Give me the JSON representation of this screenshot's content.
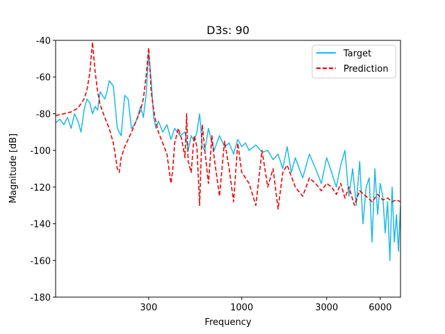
{
  "chart_data": {
    "type": "line",
    "title": "D3s: 90",
    "xlabel": "Frequency",
    "ylabel": "Magnitude [dB]",
    "xscale": "log",
    "xlim": [
      90,
      7800
    ],
    "ylim": [
      -180,
      -40
    ],
    "xticks": [
      300,
      1000,
      3000,
      6000
    ],
    "xtick_labels": [
      "300",
      "1000",
      "3000",
      "6000"
    ],
    "yticks": [
      -180,
      -160,
      -140,
      -120,
      -100,
      -80,
      -60,
      -40
    ],
    "ytick_labels": [
      "-180",
      "-160",
      "-140",
      "-120",
      "-100",
      "-80",
      "-60",
      "-40"
    ],
    "legend_position": "top-right",
    "legend": [
      "Target",
      "Prediction"
    ],
    "colors": {
      "Target": "#1ab8ec",
      "Prediction": "#ee0000"
    },
    "series": [
      {
        "name": "Target",
        "style": "solid",
        "x": [
          90,
          95,
          100,
          105,
          110,
          115,
          120,
          125,
          130,
          135,
          140,
          145,
          150,
          155,
          160,
          165,
          170,
          175,
          180,
          190,
          200,
          210,
          220,
          230,
          240,
          250,
          260,
          270,
          280,
          290,
          300,
          310,
          320,
          330,
          340,
          360,
          380,
          400,
          420,
          450,
          480,
          500,
          520,
          540,
          560,
          580,
          600,
          620,
          650,
          680,
          700,
          750,
          800,
          850,
          900,
          950,
          1000,
          1050,
          1100,
          1200,
          1300,
          1400,
          1500,
          1600,
          1700,
          1800,
          1900,
          2000,
          2200,
          2400,
          2600,
          2800,
          3000,
          3200,
          3400,
          3600,
          3800,
          4000,
          4200,
          4400,
          4600,
          4800,
          5000,
          5200,
          5400,
          5600,
          5800,
          6000,
          6200,
          6400,
          6600,
          6800,
          7000,
          7200,
          7400,
          7600,
          7800
        ],
        "values": [
          -85,
          -83,
          -86,
          -82,
          -88,
          -80,
          -84,
          -90,
          -78,
          -72,
          -74,
          -80,
          -76,
          -78,
          -68,
          -70,
          -72,
          -68,
          -62,
          -65,
          -88,
          -92,
          -70,
          -72,
          -88,
          -86,
          -82,
          -76,
          -82,
          -70,
          -47,
          -62,
          -82,
          -88,
          -84,
          -90,
          -86,
          -94,
          -88,
          -92,
          -90,
          -100,
          -92,
          -95,
          -90,
          -80,
          -98,
          -100,
          -88,
          -96,
          -100,
          -92,
          -98,
          -96,
          -102,
          -94,
          -98,
          -96,
          -100,
          -97,
          -101,
          -100,
          -105,
          -102,
          -110,
          -98,
          -112,
          -104,
          -115,
          -102,
          -110,
          -118,
          -104,
          -112,
          -120,
          -108,
          -100,
          -125,
          -110,
          -130,
          -106,
          -140,
          -120,
          -115,
          -150,
          -110,
          -135,
          -118,
          -125,
          -145,
          -128,
          -160,
          -120,
          -150,
          -135,
          -155,
          -130
        ]
      },
      {
        "name": "Prediction",
        "style": "dashed",
        "x": [
          90,
          100,
          110,
          120,
          130,
          135,
          140,
          145,
          150,
          155,
          160,
          170,
          180,
          190,
          200,
          205,
          210,
          220,
          230,
          240,
          250,
          260,
          270,
          280,
          290,
          300,
          305,
          310,
          320,
          330,
          340,
          360,
          380,
          400,
          410,
          420,
          440,
          460,
          480,
          490,
          500,
          520,
          540,
          560,
          580,
          600,
          620,
          650,
          680,
          700,
          750,
          800,
          850,
          900,
          950,
          1000,
          1100,
          1200,
          1300,
          1400,
          1500,
          1600,
          1700,
          1800,
          2000,
          2200,
          2400,
          2600,
          2800,
          3000,
          3200,
          3400,
          3600,
          3800,
          4000,
          4300,
          4600,
          5000,
          5400,
          5800,
          6200,
          6600,
          7000,
          7400,
          7800
        ],
        "values": [
          -81,
          -80,
          -79,
          -77,
          -72,
          -67,
          -58,
          -41,
          -57,
          -68,
          -75,
          -82,
          -88,
          -96,
          -110,
          -112,
          -104,
          -98,
          -94,
          -90,
          -86,
          -82,
          -78,
          -72,
          -60,
          -44,
          -56,
          -68,
          -78,
          -85,
          -90,
          -96,
          -102,
          -118,
          -110,
          -96,
          -88,
          -94,
          -104,
          -80,
          -106,
          -112,
          -92,
          -98,
          -130,
          -86,
          -100,
          -118,
          -92,
          -104,
          -125,
          -95,
          -110,
          -128,
          -96,
          -112,
          -118,
          -130,
          -100,
          -120,
          -110,
          -132,
          -112,
          -108,
          -120,
          -125,
          -115,
          -118,
          -122,
          -118,
          -120,
          -124,
          -118,
          -126,
          -120,
          -130,
          -122,
          -125,
          -128,
          -124,
          -127,
          -126,
          -128,
          -127,
          -128
        ]
      }
    ]
  }
}
